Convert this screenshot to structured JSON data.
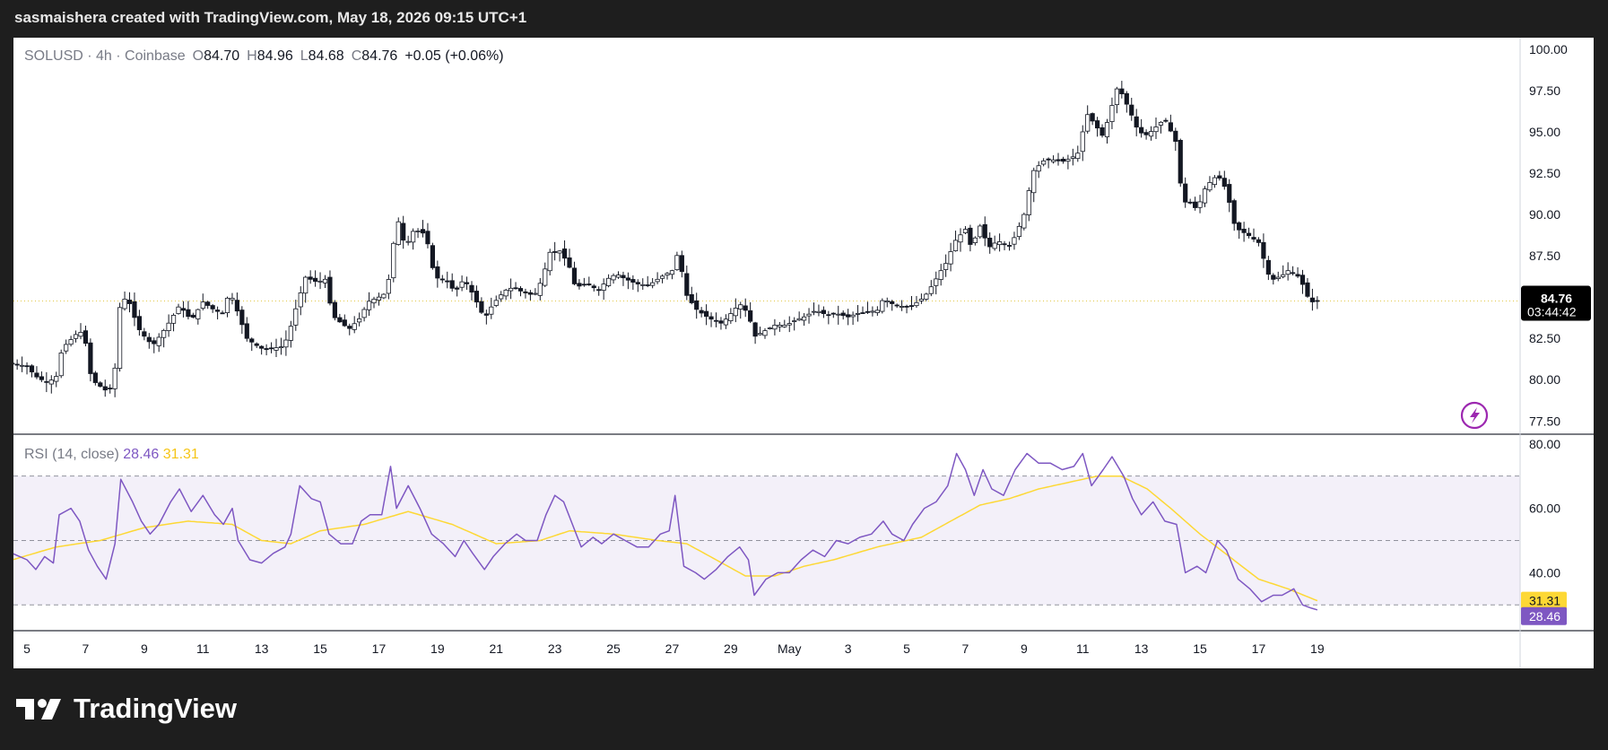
{
  "header": {
    "attribution": "sasmaishera created with TradingView.com, May 18, 2026 09:15 UTC+1"
  },
  "brand": {
    "name": "TradingView"
  },
  "legend": {
    "symbol": "SOLUSD · 4h · Coinbase",
    "o_label": "O",
    "o": "84.70",
    "h_label": "H",
    "h": "84.96",
    "l_label": "L",
    "l": "84.68",
    "c_label": "C",
    "c": "84.76",
    "change": "+0.05 (+0.06%)"
  },
  "rsi_legend": {
    "label": "RSI (14, close)",
    "rsi": "28.46",
    "ma": "31.31"
  },
  "price_tag": {
    "price": "84.76",
    "countdown": "03:44:42"
  },
  "colors": {
    "up": "#ffffff",
    "down": "#131722",
    "rsi": "#7e57c2",
    "rsi_ma": "#fdd835",
    "band": "#7e57c2"
  },
  "icons": {
    "alert": "lightning-bolt-icon"
  },
  "chart_data": [
    {
      "type": "candlestick",
      "title": "SOLUSD · 4h · Coinbase",
      "y_ticks": [
        "100.00",
        "97.50",
        "95.00",
        "92.50",
        "90.00",
        "87.50",
        "82.50",
        "80.00",
        "77.50"
      ],
      "ylim": [
        76.7,
        100.7
      ],
      "x_ticks": [
        "5",
        "7",
        "9",
        "11",
        "13",
        "15",
        "17",
        "19",
        "21",
        "23",
        "25",
        "27",
        "29",
        "May",
        "3",
        "5",
        "7",
        "9",
        "11",
        "13",
        "15",
        "17",
        "19"
      ],
      "x_tick_days": [
        5,
        7,
        9,
        11,
        13,
        15,
        17,
        19,
        21,
        23,
        25,
        27,
        29,
        31,
        33,
        35,
        37,
        39,
        41,
        43,
        45,
        47,
        49
      ],
      "grid": false,
      "last_price": 84.76,
      "close_path": [
        [
          4.5,
          81.0
        ],
        [
          5.0,
          80.8
        ],
        [
          5.3,
          80.2
        ],
        [
          5.7,
          79.8
        ],
        [
          6.0,
          80.2
        ],
        [
          6.2,
          81.9
        ],
        [
          6.6,
          82.6
        ],
        [
          6.8,
          83.0
        ],
        [
          7.0,
          82.2
        ],
        [
          7.2,
          80.0
        ],
        [
          7.5,
          79.6
        ],
        [
          7.8,
          79.2
        ],
        [
          8.0,
          80.7
        ],
        [
          8.2,
          85.1
        ],
        [
          8.5,
          84.6
        ],
        [
          8.8,
          83.1
        ],
        [
          9.1,
          82.4
        ],
        [
          9.3,
          82.1
        ],
        [
          9.6,
          82.8
        ],
        [
          9.9,
          83.6
        ],
        [
          10.2,
          84.5
        ],
        [
          10.6,
          83.6
        ],
        [
          11.0,
          84.7
        ],
        [
          11.4,
          84.2
        ],
        [
          11.7,
          84.0
        ],
        [
          11.9,
          85.4
        ],
        [
          12.2,
          84.0
        ],
        [
          12.5,
          82.5
        ],
        [
          12.8,
          82.1
        ],
        [
          13.1,
          81.8
        ],
        [
          13.4,
          81.9
        ],
        [
          13.7,
          82.0
        ],
        [
          13.9,
          82.6
        ],
        [
          14.2,
          84.5
        ],
        [
          14.5,
          86.2
        ],
        [
          14.9,
          85.9
        ],
        [
          15.2,
          86.1
        ],
        [
          15.4,
          83.9
        ],
        [
          15.8,
          83.3
        ],
        [
          16.0,
          83.1
        ],
        [
          16.4,
          83.8
        ],
        [
          16.6,
          84.7
        ],
        [
          17.0,
          85.0
        ],
        [
          17.2,
          85.2
        ],
        [
          17.4,
          86.5
        ],
        [
          17.6,
          90.0
        ],
        [
          17.9,
          88.0
        ],
        [
          18.2,
          89.1
        ],
        [
          18.6,
          88.8
        ],
        [
          18.9,
          86.2
        ],
        [
          19.3,
          86.0
        ],
        [
          19.6,
          85.3
        ],
        [
          19.9,
          86.1
        ],
        [
          20.2,
          85.2
        ],
        [
          20.6,
          83.7
        ],
        [
          20.9,
          84.6
        ],
        [
          21.3,
          85.4
        ],
        [
          21.6,
          85.6
        ],
        [
          21.9,
          85.3
        ],
        [
          22.3,
          85.1
        ],
        [
          22.6,
          86.2
        ],
        [
          22.8,
          87.7
        ],
        [
          23.2,
          87.8
        ],
        [
          23.5,
          86.8
        ],
        [
          23.7,
          85.6
        ],
        [
          24.1,
          85.8
        ],
        [
          24.5,
          85.4
        ],
        [
          24.8,
          86.1
        ],
        [
          25.1,
          86.4
        ],
        [
          25.4,
          86.1
        ],
        [
          25.8,
          85.8
        ],
        [
          26.2,
          85.7
        ],
        [
          26.6,
          86.2
        ],
        [
          27.0,
          86.6
        ],
        [
          27.2,
          87.7
        ],
        [
          27.5,
          85.1
        ],
        [
          27.8,
          84.3
        ],
        [
          28.1,
          83.9
        ],
        [
          28.4,
          83.6
        ],
        [
          28.7,
          83.4
        ],
        [
          29.0,
          84.0
        ],
        [
          29.3,
          84.6
        ],
        [
          29.6,
          84.0
        ],
        [
          29.8,
          82.6
        ],
        [
          30.1,
          82.9
        ],
        [
          30.5,
          83.3
        ],
        [
          30.9,
          83.3
        ],
        [
          31.2,
          83.6
        ],
        [
          31.5,
          83.8
        ],
        [
          31.9,
          84.2
        ],
        [
          32.3,
          83.9
        ],
        [
          32.6,
          84.0
        ],
        [
          33.0,
          83.8
        ],
        [
          33.3,
          84.0
        ],
        [
          33.7,
          84.1
        ],
        [
          34.0,
          84.2
        ],
        [
          34.2,
          84.9
        ],
        [
          34.6,
          84.5
        ],
        [
          35.0,
          84.4
        ],
        [
          35.2,
          84.5
        ],
        [
          35.6,
          85.0
        ],
        [
          35.9,
          85.8
        ],
        [
          36.2,
          86.7
        ],
        [
          36.4,
          87.2
        ],
        [
          36.6,
          88.3
        ],
        [
          37.0,
          89.1
        ],
        [
          37.2,
          88.0
        ],
        [
          37.5,
          89.3
        ],
        [
          37.8,
          88.0
        ],
        [
          38.1,
          88.4
        ],
        [
          38.5,
          88.1
        ],
        [
          38.7,
          88.7
        ],
        [
          39.0,
          90.0
        ],
        [
          39.3,
          92.6
        ],
        [
          39.7,
          93.3
        ],
        [
          40.0,
          93.3
        ],
        [
          40.3,
          93.2
        ],
        [
          40.6,
          93.4
        ],
        [
          40.9,
          93.8
        ],
        [
          41.1,
          96.2
        ],
        [
          41.4,
          95.5
        ],
        [
          41.7,
          94.7
        ],
        [
          41.9,
          96.0
        ],
        [
          42.2,
          97.8
        ],
        [
          42.6,
          96.3
        ],
        [
          42.9,
          95.0
        ],
        [
          43.2,
          94.8
        ],
        [
          43.5,
          95.3
        ],
        [
          43.8,
          95.8
        ],
        [
          44.2,
          94.3
        ],
        [
          44.4,
          90.7
        ],
        [
          44.6,
          90.8
        ],
        [
          44.9,
          90.3
        ],
        [
          45.2,
          91.7
        ],
        [
          45.6,
          92.4
        ],
        [
          45.9,
          91.5
        ],
        [
          46.2,
          89.2
        ],
        [
          46.6,
          88.8
        ],
        [
          47.0,
          88.3
        ],
        [
          47.4,
          86.0
        ],
        [
          47.8,
          86.3
        ],
        [
          48.0,
          86.6
        ],
        [
          48.4,
          86.2
        ],
        [
          48.7,
          84.9
        ],
        [
          48.8,
          84.7
        ],
        [
          49.0,
          84.76
        ]
      ],
      "_close_path_note": "dense 4h candles are drawn along this estimated close path"
    },
    {
      "type": "line",
      "title": "RSI (14, close)",
      "series": [
        {
          "name": "RSI",
          "color": "#7e57c2",
          "last": 28.46
        },
        {
          "name": "RSI-based MA",
          "color": "#fdd835",
          "last": 31.31
        }
      ],
      "y_ticks": [
        "80.00",
        "60.00",
        "40.00"
      ],
      "ylim": [
        22,
        83
      ],
      "bands": [
        30,
        50,
        70
      ],
      "rsi_path": [
        [
          4.5,
          46
        ],
        [
          5.0,
          44
        ],
        [
          5.3,
          41
        ],
        [
          5.6,
          45
        ],
        [
          5.9,
          43
        ],
        [
          6.1,
          58
        ],
        [
          6.5,
          60
        ],
        [
          6.8,
          56
        ],
        [
          7.1,
          47
        ],
        [
          7.4,
          42
        ],
        [
          7.7,
          38
        ],
        [
          8.0,
          49
        ],
        [
          8.2,
          69
        ],
        [
          8.6,
          62
        ],
        [
          8.9,
          56
        ],
        [
          9.2,
          52
        ],
        [
          9.5,
          55
        ],
        [
          9.9,
          62
        ],
        [
          10.2,
          66
        ],
        [
          10.6,
          59
        ],
        [
          11.0,
          64
        ],
        [
          11.4,
          58
        ],
        [
          11.7,
          55
        ],
        [
          12.0,
          60
        ],
        [
          12.2,
          50
        ],
        [
          12.6,
          44
        ],
        [
          13.0,
          43
        ],
        [
          13.4,
          46
        ],
        [
          13.8,
          48
        ],
        [
          14.0,
          52
        ],
        [
          14.3,
          67
        ],
        [
          14.7,
          63
        ],
        [
          15.0,
          62
        ],
        [
          15.3,
          52
        ],
        [
          15.7,
          49
        ],
        [
          16.1,
          49
        ],
        [
          16.4,
          56
        ],
        [
          16.7,
          58
        ],
        [
          17.1,
          58
        ],
        [
          17.4,
          73
        ],
        [
          17.6,
          60
        ],
        [
          18.0,
          67
        ],
        [
          18.4,
          60
        ],
        [
          18.8,
          52
        ],
        [
          19.2,
          49
        ],
        [
          19.6,
          45
        ],
        [
          19.9,
          50
        ],
        [
          20.2,
          46
        ],
        [
          20.6,
          41
        ],
        [
          20.9,
          45
        ],
        [
          21.3,
          49
        ],
        [
          21.7,
          52
        ],
        [
          22.0,
          50
        ],
        [
          22.4,
          50
        ],
        [
          22.7,
          58
        ],
        [
          23.0,
          64
        ],
        [
          23.3,
          62
        ],
        [
          23.6,
          55
        ],
        [
          23.9,
          48
        ],
        [
          24.3,
          51
        ],
        [
          24.6,
          49
        ],
        [
          25.0,
          52
        ],
        [
          25.4,
          50
        ],
        [
          25.8,
          48
        ],
        [
          26.2,
          48
        ],
        [
          26.6,
          52
        ],
        [
          26.9,
          53
        ],
        [
          27.1,
          64
        ],
        [
          27.4,
          42
        ],
        [
          27.8,
          40
        ],
        [
          28.1,
          38
        ],
        [
          28.5,
          41
        ],
        [
          28.9,
          45
        ],
        [
          29.3,
          48
        ],
        [
          29.6,
          44
        ],
        [
          29.8,
          33
        ],
        [
          30.2,
          38
        ],
        [
          30.6,
          40
        ],
        [
          31.0,
          40
        ],
        [
          31.4,
          44
        ],
        [
          31.8,
          47
        ],
        [
          32.2,
          45
        ],
        [
          32.6,
          50
        ],
        [
          33.0,
          49
        ],
        [
          33.4,
          51
        ],
        [
          33.8,
          52
        ],
        [
          34.2,
          56
        ],
        [
          34.5,
          52
        ],
        [
          34.9,
          50
        ],
        [
          35.2,
          55
        ],
        [
          35.6,
          60
        ],
        [
          36.0,
          62
        ],
        [
          36.4,
          67
        ],
        [
          36.7,
          77
        ],
        [
          37.0,
          72
        ],
        [
          37.3,
          64
        ],
        [
          37.6,
          72
        ],
        [
          37.9,
          66
        ],
        [
          38.3,
          64
        ],
        [
          38.7,
          72
        ],
        [
          39.1,
          77
        ],
        [
          39.5,
          74
        ],
        [
          39.9,
          74
        ],
        [
          40.3,
          72
        ],
        [
          40.7,
          73
        ],
        [
          41.0,
          77
        ],
        [
          41.3,
          67
        ],
        [
          41.7,
          72
        ],
        [
          42.0,
          76
        ],
        [
          42.4,
          70
        ],
        [
          42.7,
          63
        ],
        [
          43.0,
          58
        ],
        [
          43.4,
          62
        ],
        [
          43.8,
          56
        ],
        [
          44.2,
          55
        ],
        [
          44.5,
          40
        ],
        [
          44.9,
          42
        ],
        [
          45.2,
          40
        ],
        [
          45.6,
          50
        ],
        [
          45.9,
          47
        ],
        [
          46.3,
          38
        ],
        [
          46.7,
          35
        ],
        [
          47.1,
          31
        ],
        [
          47.5,
          33
        ],
        [
          47.8,
          33
        ],
        [
          48.2,
          35
        ],
        [
          48.5,
          30
        ],
        [
          48.8,
          29
        ],
        [
          49.0,
          28.46
        ]
      ],
      "ma_path": [
        [
          4.5,
          44
        ],
        [
          6.0,
          48
        ],
        [
          7.5,
          50
        ],
        [
          9.0,
          54
        ],
        [
          10.5,
          56
        ],
        [
          12.0,
          55
        ],
        [
          13.0,
          50
        ],
        [
          14.0,
          49
        ],
        [
          15.0,
          53
        ],
        [
          16.5,
          55
        ],
        [
          18.0,
          59
        ],
        [
          19.5,
          55
        ],
        [
          21.0,
          49
        ],
        [
          22.5,
          50
        ],
        [
          23.5,
          53
        ],
        [
          25.0,
          52
        ],
        [
          26.5,
          50
        ],
        [
          27.5,
          49
        ],
        [
          28.5,
          44
        ],
        [
          29.5,
          39
        ],
        [
          30.5,
          39
        ],
        [
          31.5,
          42
        ],
        [
          32.5,
          44
        ],
        [
          34.0,
          48
        ],
        [
          35.5,
          51
        ],
        [
          36.5,
          56
        ],
        [
          37.5,
          61
        ],
        [
          38.5,
          63
        ],
        [
          39.5,
          66
        ],
        [
          40.5,
          68
        ],
        [
          41.5,
          70
        ],
        [
          42.3,
          70
        ],
        [
          43.2,
          66
        ],
        [
          44.0,
          60
        ],
        [
          45.0,
          52
        ],
        [
          46.0,
          45
        ],
        [
          47.0,
          38
        ],
        [
          48.0,
          35
        ],
        [
          49.0,
          31.31
        ]
      ]
    }
  ]
}
